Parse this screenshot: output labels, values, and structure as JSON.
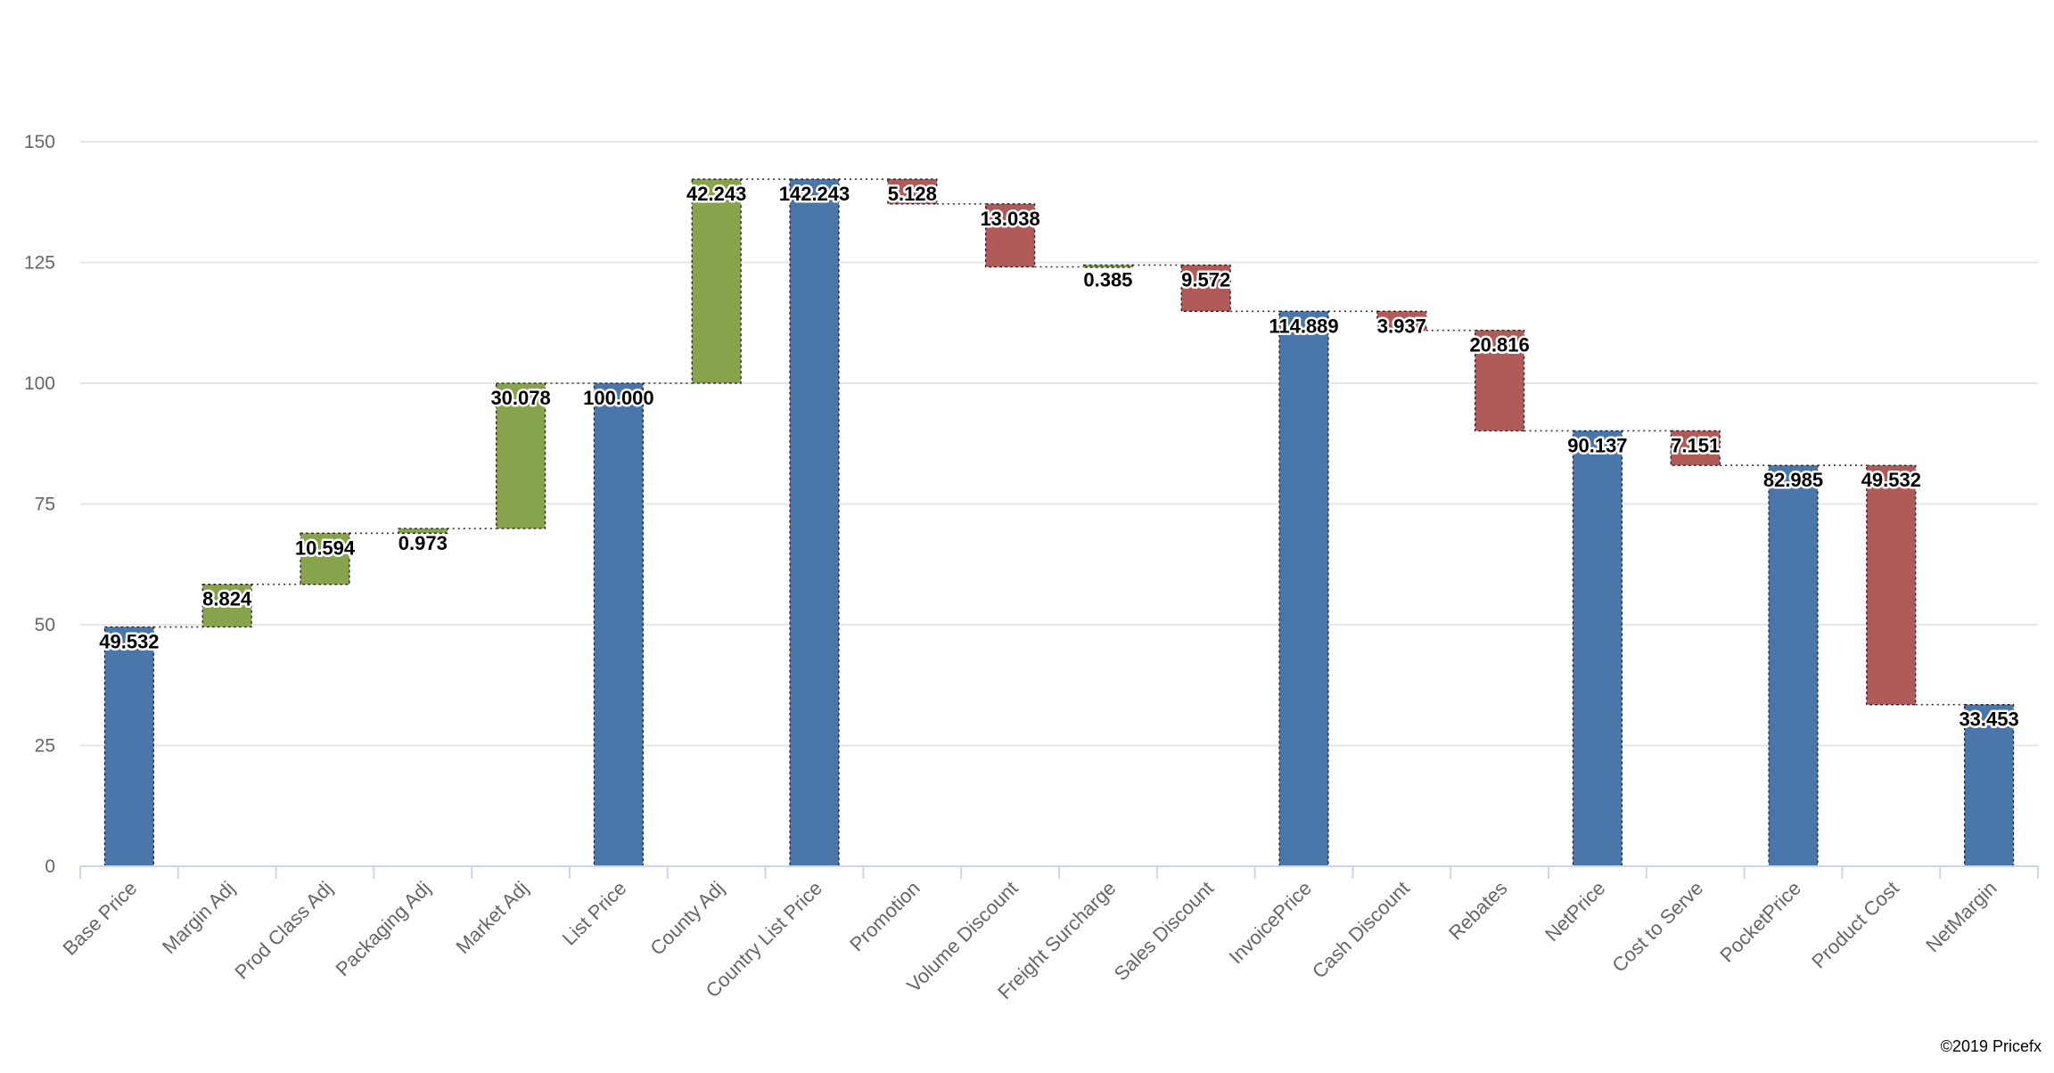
{
  "chart_data": {
    "type": "waterfall",
    "categories": [
      "Base Price",
      "Margin Adj",
      "Prod Class Adj",
      "Packaging Adj",
      "Market Adj",
      "List Price",
      "County Adj",
      "Country List Price",
      "Promotion",
      "Volume Discount",
      "Freight Surcharge",
      "Sales Discount",
      "InvoicePrice",
      "Cash Discount",
      "Rebates",
      "NetPrice",
      "Cost to Serve",
      "PocketPrice",
      "Product Cost",
      "NetMargin"
    ],
    "values": [
      49.532,
      8.824,
      10.594,
      0.973,
      30.078,
      100.0,
      42.243,
      142.243,
      -5.128,
      -13.038,
      0.385,
      -9.572,
      114.889,
      -3.937,
      -20.816,
      90.137,
      -7.151,
      82.985,
      -49.532,
      33.453
    ],
    "labels": [
      "49.532",
      "8.824",
      "10.594",
      "0.973",
      "30.078",
      "100.000",
      "42.243",
      "142.243",
      "5.128",
      "13.038",
      "0.385",
      "9.572",
      "114.889",
      "3.937",
      "20.816",
      "90.137",
      "7.151",
      "82.985",
      "49.532",
      "33.453"
    ],
    "kinds": [
      "total",
      "delta",
      "delta",
      "delta",
      "delta",
      "total",
      "delta",
      "total",
      "delta",
      "delta",
      "delta",
      "delta",
      "total",
      "delta",
      "delta",
      "total",
      "delta",
      "total",
      "delta",
      "total"
    ],
    "ylim": [
      0,
      150
    ],
    "yticks": [
      "0",
      "25",
      "50",
      "75",
      "100",
      "125",
      "150"
    ],
    "ytick_values": [
      0,
      25,
      50,
      75,
      100,
      125,
      150
    ],
    "grid": true,
    "colors": {
      "total": "#4a76aa",
      "increase": "#87a44d",
      "decrease": "#b05a5a"
    }
  },
  "credit": "©2019 Pricefx"
}
